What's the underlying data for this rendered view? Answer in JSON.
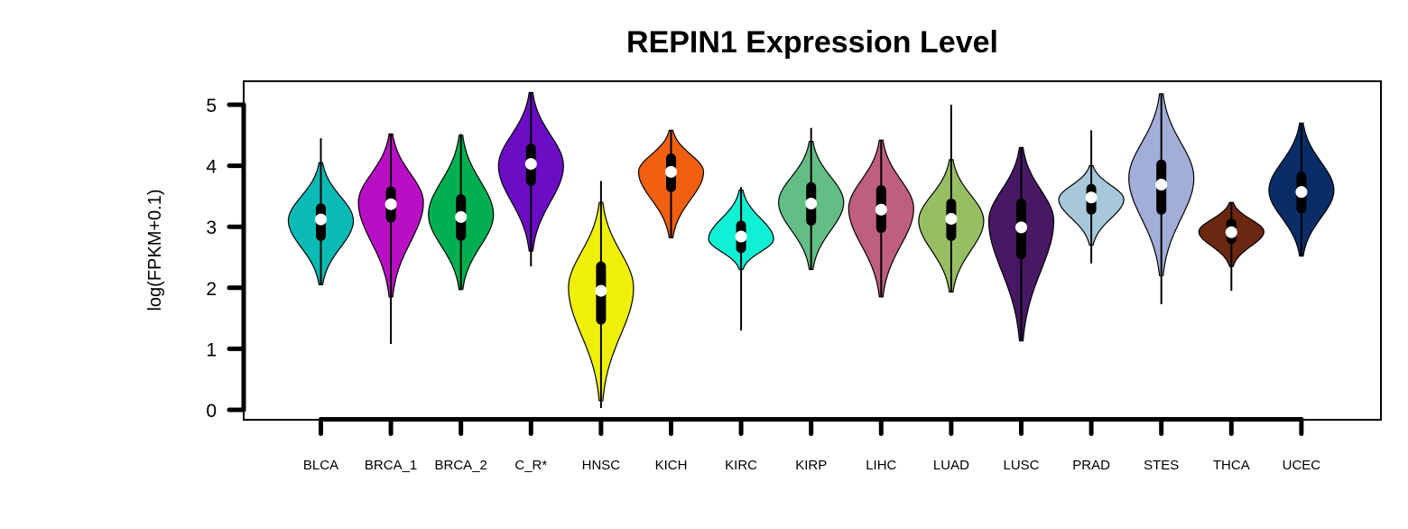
{
  "chart_data": {
    "type": "violin",
    "title": "REPIN1 Expression Level",
    "ylabel": "log(FPKM+0.1)",
    "ylim": [
      0,
      5
    ],
    "yticks": [
      0,
      1,
      2,
      3,
      4,
      5
    ],
    "grid": false,
    "categories": [
      "BLCA",
      "BRCA_1",
      "BRCA_2",
      "C_R*",
      "HNSC",
      "KICH",
      "KIRC",
      "KIRP",
      "LIHC",
      "LUAD",
      "LUSC",
      "PRAD",
      "STES",
      "THCA",
      "UCEC"
    ],
    "series": [
      {
        "category": "BLCA",
        "color": "#0ABAB5",
        "min": 2.05,
        "max": 4.45,
        "vmin": 2.05,
        "vmax": 4.05,
        "q1": 2.85,
        "q3": 3.3,
        "median": 3.12,
        "peak": 3.1
      },
      {
        "category": "BRCA_1",
        "color": "#B80FC4",
        "min": 1.08,
        "max": 4.52,
        "vmin": 1.85,
        "vmax": 4.52,
        "q1": 3.15,
        "q3": 3.58,
        "median": 3.37,
        "peak": 3.4
      },
      {
        "category": "BRCA_2",
        "color": "#00B050",
        "min": 1.97,
        "max": 4.52,
        "vmin": 1.97,
        "vmax": 4.5,
        "q1": 2.85,
        "q3": 3.45,
        "median": 3.16,
        "peak": 3.2
      },
      {
        "category": "C_R*",
        "color": "#6A0DC4",
        "min": 2.35,
        "max": 5.2,
        "vmin": 2.6,
        "vmax": 5.2,
        "q1": 3.75,
        "q3": 4.28,
        "median": 4.03,
        "peak": 4.0
      },
      {
        "category": "HNSC",
        "color": "#EEF00A",
        "min": 0.03,
        "max": 3.75,
        "vmin": 0.15,
        "vmax": 3.4,
        "q1": 1.48,
        "q3": 2.35,
        "median": 1.95,
        "peak": 2.0
      },
      {
        "category": "KICH",
        "color": "#F06010",
        "min": 2.82,
        "max": 4.58,
        "vmin": 2.82,
        "vmax": 4.58,
        "q1": 3.65,
        "q3": 4.12,
        "median": 3.9,
        "peak": 3.9
      },
      {
        "category": "KIRC",
        "color": "#10F0D5",
        "min": 1.3,
        "max": 3.65,
        "vmin": 2.3,
        "vmax": 3.6,
        "q1": 2.65,
        "q3": 3.02,
        "median": 2.84,
        "peak": 2.8
      },
      {
        "category": "KIRP",
        "color": "#63BE85",
        "min": 2.3,
        "max": 4.62,
        "vmin": 2.3,
        "vmax": 4.4,
        "q1": 3.1,
        "q3": 3.65,
        "median": 3.38,
        "peak": 3.4
      },
      {
        "category": "LIHC",
        "color": "#BE5F80",
        "min": 1.85,
        "max": 4.42,
        "vmin": 1.85,
        "vmax": 4.42,
        "q1": 2.98,
        "q3": 3.6,
        "median": 3.28,
        "peak": 3.3
      },
      {
        "category": "LUAD",
        "color": "#98BE63",
        "min": 1.93,
        "max": 5.0,
        "vmin": 1.93,
        "vmax": 4.1,
        "q1": 2.85,
        "q3": 3.38,
        "median": 3.13,
        "peak": 3.1
      },
      {
        "category": "LUSC",
        "color": "#471863",
        "min": 1.13,
        "max": 4.3,
        "vmin": 1.13,
        "vmax": 4.3,
        "q1": 2.55,
        "q3": 3.38,
        "median": 2.99,
        "peak": 3.1
      },
      {
        "category": "PRAD",
        "color": "#A6C8DA",
        "min": 2.4,
        "max": 4.58,
        "vmin": 2.7,
        "vmax": 4.0,
        "q1": 3.28,
        "q3": 3.62,
        "median": 3.48,
        "peak": 3.45
      },
      {
        "category": "STES",
        "color": "#A2AED8",
        "min": 1.73,
        "max": 5.18,
        "vmin": 2.2,
        "vmax": 5.18,
        "q1": 3.28,
        "q3": 4.02,
        "median": 3.69,
        "peak": 3.8
      },
      {
        "category": "THCA",
        "color": "#6B2710",
        "min": 1.95,
        "max": 3.4,
        "vmin": 2.35,
        "vmax": 3.4,
        "q1": 2.8,
        "q3": 3.05,
        "median": 2.91,
        "peak": 2.92
      },
      {
        "category": "UCEC",
        "color": "#0A2D68",
        "min": 2.52,
        "max": 4.7,
        "vmin": 2.52,
        "vmax": 4.7,
        "q1": 3.3,
        "q3": 3.82,
        "median": 3.57,
        "peak": 3.6
      }
    ]
  }
}
